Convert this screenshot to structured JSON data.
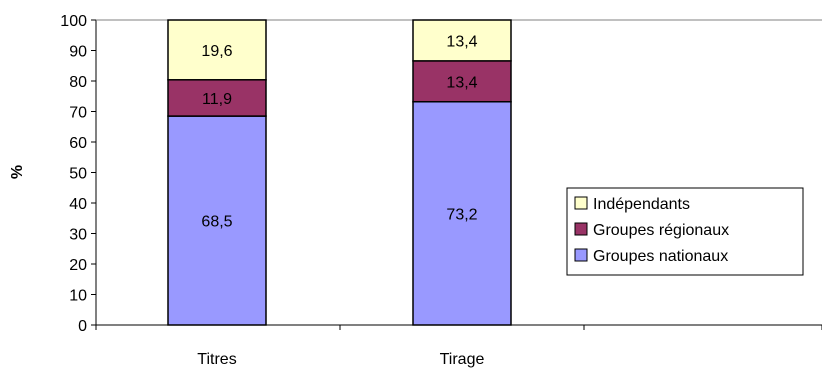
{
  "chart_data": {
    "type": "bar",
    "stacked": true,
    "categories": [
      "Titres",
      "Tirage"
    ],
    "series": [
      {
        "name": "Groupes nationaux",
        "values": [
          68.5,
          73.2
        ],
        "labels": [
          "68,5",
          "73,2"
        ],
        "color": "#9999ff"
      },
      {
        "name": "Groupes régionaux",
        "values": [
          11.9,
          13.4
        ],
        "labels": [
          "11,9",
          "13,4"
        ],
        "color": "#993366"
      },
      {
        "name": "Indépendants",
        "values": [
          19.6,
          13.4
        ],
        "labels": [
          "19,6",
          "13,4"
        ],
        "color": "#ffffcc"
      }
    ],
    "legend_order": [
      "Indépendants",
      "Groupes régionaux",
      "Groupes nationaux"
    ],
    "ylabel": "%",
    "xlabel": "",
    "ylim": [
      0,
      100
    ],
    "yticks": [
      "0",
      "10",
      "20",
      "30",
      "40",
      "50",
      "60",
      "70",
      "80",
      "90",
      "100"
    ],
    "grid": false,
    "legend_position": "right"
  }
}
